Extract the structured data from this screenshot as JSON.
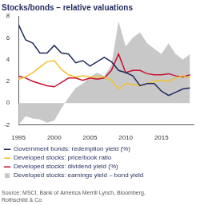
{
  "chart_data": {
    "type": "line",
    "title": "Stocks/bonds – relative valuations",
    "subtitle": [
      "Source: MSCI, Bank of America Merrill Lynch, Bloomberg,",
      "Rothschild & Co"
    ],
    "x": [
      1995,
      1996,
      1997,
      1998,
      1999,
      2000,
      2001,
      2002,
      2003,
      2004,
      2005,
      2006,
      2007,
      2008,
      2009,
      2010,
      2011,
      2012,
      2013,
      2014,
      2015,
      2016,
      2017,
      2018,
      2019
    ],
    "series": [
      {
        "name": "Government bonds: redemption yield (%)",
        "color": "#1f2a5c",
        "type": "line",
        "values": [
          7.2,
          5.8,
          5.5,
          4.6,
          4.6,
          5.3,
          4.6,
          4.5,
          3.7,
          3.9,
          3.4,
          3.8,
          4.2,
          3.8,
          3.0,
          2.8,
          2.5,
          1.6,
          1.8,
          1.8,
          1.1,
          0.7,
          1.0,
          1.3,
          1.4
        ]
      },
      {
        "name": "Developed stocks: price/book ratio",
        "color": "#f2c12e",
        "type": "line",
        "values": [
          2.2,
          2.4,
          2.8,
          3.3,
          3.8,
          3.9,
          3.1,
          2.6,
          2.4,
          2.5,
          2.4,
          2.4,
          2.4,
          2.1,
          1.3,
          1.8,
          1.7,
          1.6,
          1.8,
          2.0,
          2.1,
          2.0,
          2.3,
          2.5,
          2.3
        ]
      },
      {
        "name": "Developed stocks: dividend yield (%)",
        "color": "#c8102e",
        "type": "line",
        "values": [
          2.5,
          2.3,
          2.0,
          1.8,
          1.6,
          1.5,
          1.9,
          2.3,
          2.3,
          2.1,
          2.3,
          2.2,
          2.3,
          3.0,
          4.5,
          2.8,
          3.0,
          3.0,
          2.7,
          2.6,
          2.6,
          2.7,
          2.5,
          2.4,
          2.6
        ]
      },
      {
        "name": "Developed stocks: earnings yield – bond yield",
        "color": "#c8c8c8",
        "type": "area",
        "values": [
          -2.0,
          -1.2,
          -1.4,
          -1.5,
          -1.8,
          -1.6,
          -0.5,
          0.5,
          1.4,
          1.8,
          2.4,
          2.8,
          2.5,
          3.5,
          7.5,
          5.2,
          6.0,
          6.5,
          5.5,
          5.0,
          4.5,
          5.5,
          4.5,
          4.0,
          4.5
        ]
      }
    ],
    "xlim": [
      1995,
      2019.5
    ],
    "xticks": [
      1995,
      2000,
      2005,
      2010,
      2015
    ],
    "ylim": [
      -2,
      8
    ],
    "yticks": [
      -2,
      0,
      2,
      4,
      6,
      8
    ],
    "grid": false,
    "legend": "bottom"
  }
}
